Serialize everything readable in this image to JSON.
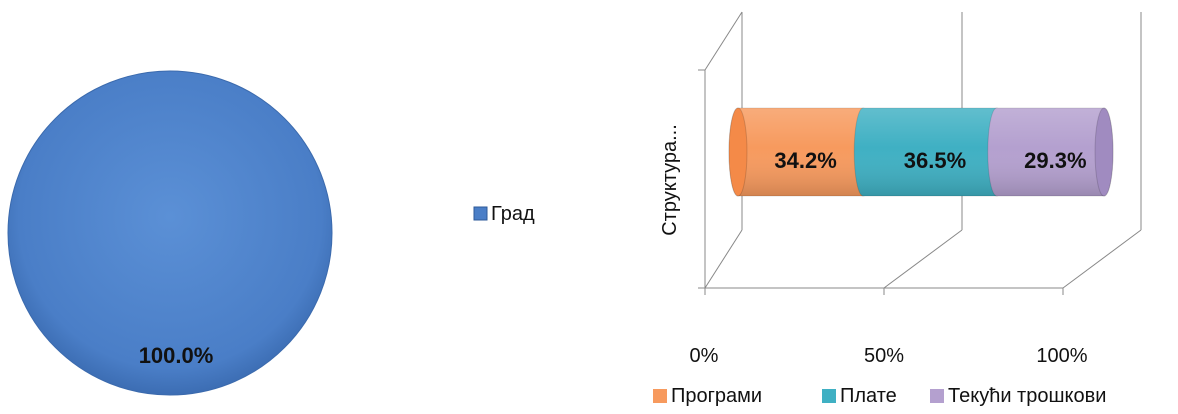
{
  "chart_data": [
    {
      "type": "pie",
      "slices": [
        {
          "label": "Град",
          "value": 100.0,
          "display": "100.0%",
          "color": "#4A7EC7"
        }
      ],
      "legend": [
        "Град"
      ],
      "legend_position": "right"
    },
    {
      "type": "bar",
      "orientation": "horizontal",
      "stacked": "100%",
      "style": "3d-cylinder",
      "categories": [
        "Структура..."
      ],
      "series": [
        {
          "name": "Програми",
          "values": [
            34.2
          ],
          "display": "34.2%",
          "color": "#F79A5E"
        },
        {
          "name": "Плате",
          "values": [
            36.5
          ],
          "display": "36.5%",
          "color": "#3FB0C3"
        },
        {
          "name": "Текући трошкови",
          "values": [
            29.3
          ],
          "display": "29.3%",
          "color": "#B4A0CF"
        }
      ],
      "x_ticks": [
        "0%",
        "50%",
        "100%"
      ],
      "xlim": [
        0,
        100
      ],
      "grid": true,
      "legend_position": "bottom"
    }
  ]
}
